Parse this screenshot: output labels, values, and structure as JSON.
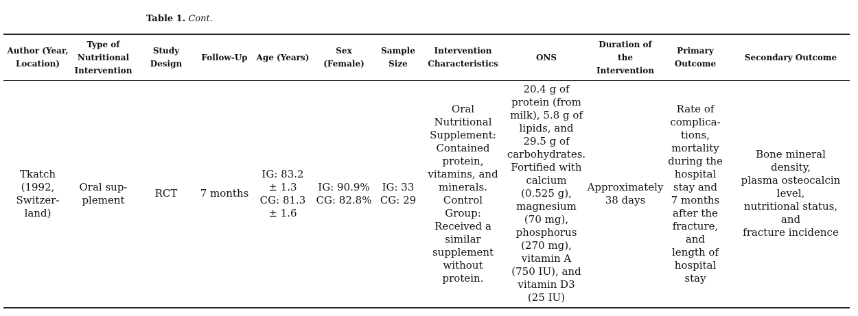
{
  "caption": {
    "label": "Table 1.",
    "cont": "Cont."
  },
  "headers": [
    "Author (Year,\nLocation)",
    "Type of\nNutritional\nIntervention",
    "Study\nDesign",
    "Follow-Up",
    "Age (Years)",
    "Sex\n(Female)",
    "Sample\nSize",
    "Intervention\nCharacteristics",
    "ONS",
    "Duration of\nthe\nIntervention",
    "Primary\nOutcome",
    "Secondary Outcome"
  ],
  "row": {
    "author": "Tkatch\n(1992,\nSwitzer-\nland)",
    "type": "Oral sup-\nplement",
    "design": "RCT",
    "follow_up": "7 months",
    "age": "IG: 83.2\n± 1.3\nCG: 81.3\n± 1.6",
    "sex": "IG: 90.9%\nCG: 82.8%",
    "sample": "IG: 33\nCG: 29",
    "intervention": "Oral\nNutritional\nSupplement:\nContained\nprotein,\nvitamins, and\nminerals.\nControl\nGroup:\nReceived a\nsimilar\nsupplement\nwithout\nprotein.",
    "ons": "20.4 g of\nprotein (from\nmilk), 5.8 g of\nlipids, and\n29.5 g of\ncarbohydrates.\nFortified with\ncalcium\n(0.525 g),\nmagnesium\n(70 mg),\nphosphorus\n(270 mg),\nvitamin A\n(750 IU), and\nvitamin D3\n(25 IU)",
    "duration": "Approximately\n38 days",
    "primary": "Rate of\ncomplica-\ntions,\nmortality\nduring the\nhospital\nstay and\n7 months\nafter the\nfracture,\nand\nlength of\nhospital\nstay",
    "secondary": "Bone mineral density,\nplasma osteocalcin\nlevel,\nnutritional status, and\nfracture incidence"
  }
}
